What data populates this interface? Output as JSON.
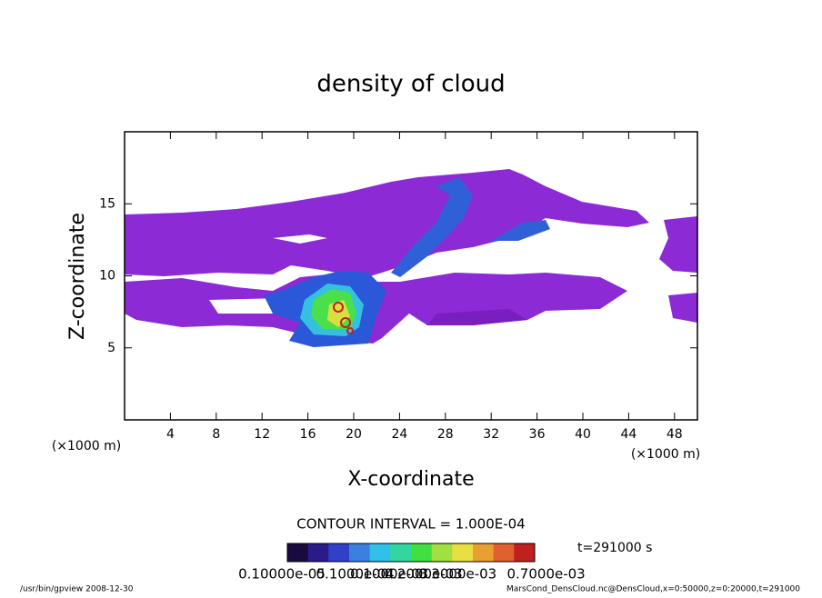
{
  "chart_data": {
    "type": "contour",
    "title": "density of cloud",
    "x_label": "X-coordinate",
    "y_label": "Z-coordinate",
    "x_unit": "(×1000 m)",
    "xlim": [
      0,
      50
    ],
    "ylim": [
      0,
      20
    ],
    "xticks": [
      4,
      8,
      12,
      16,
      20,
      24,
      28,
      32,
      36,
      40,
      44,
      48
    ],
    "yticks": [
      5,
      10,
      15
    ],
    "contour_interval": "CONTOUR INTERVAL = 1.000E-04",
    "time": "t=291000 s",
    "colorbar_colors": [
      "#1a0a40",
      "#2a1a8a",
      "#3040c8",
      "#3a80e0",
      "#30c0e8",
      "#30d8a0",
      "#40e040",
      "#a0e040",
      "#e8e040",
      "#e8a030",
      "#e06030",
      "#c02020"
    ],
    "colorbar_labels": [
      "0.10000e-05",
      "0.1000e-04",
      "0.1000e-03",
      "0.2000e-03",
      "0.3000e-03",
      "0.7000e-03"
    ],
    "footer_left": "/usr/bin/gpview  2008-12-30",
    "footer_right": "MarsCond_DensCloud.nc@DensCloud,x=0:50000,z=0:20000,t=291000"
  }
}
